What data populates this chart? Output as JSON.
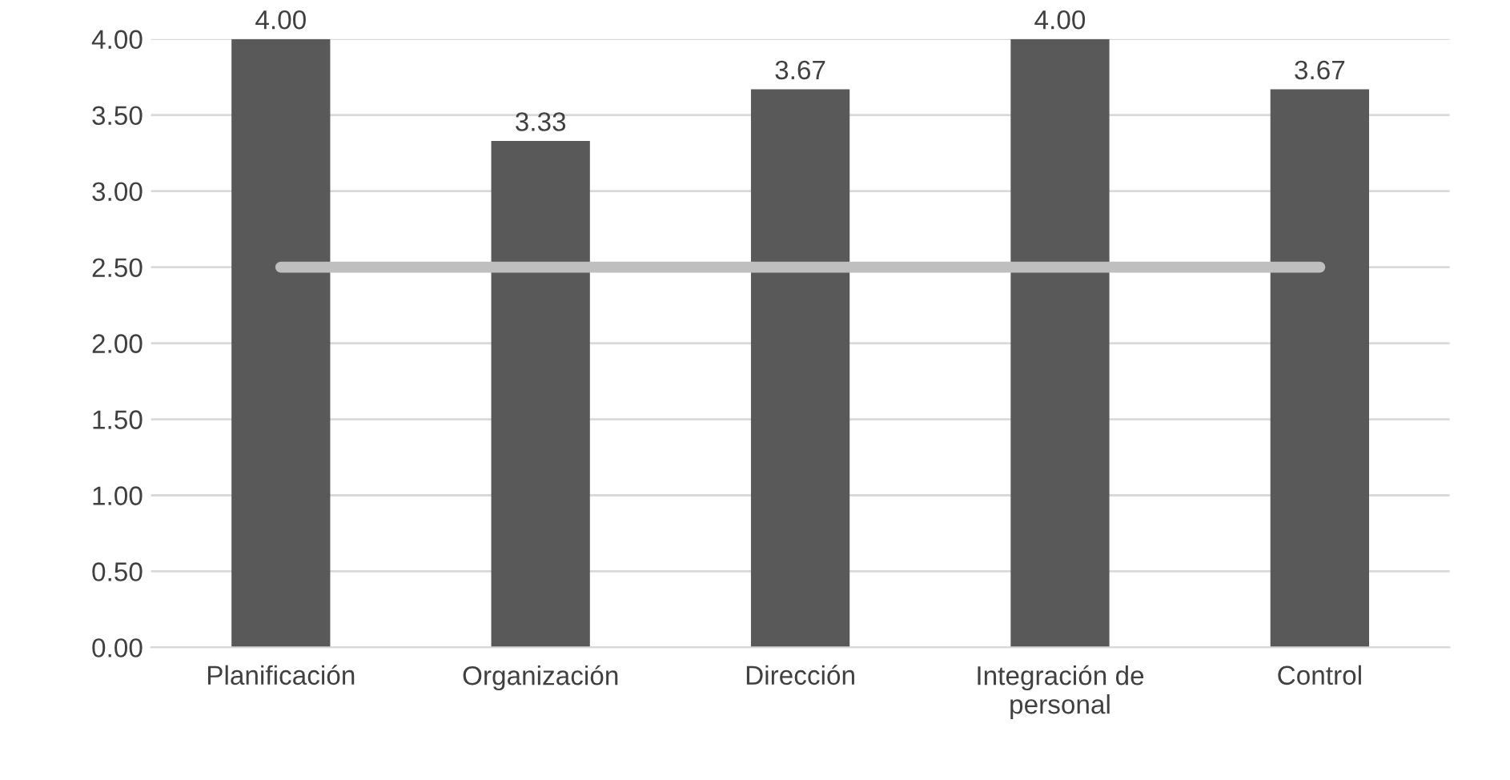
{
  "chart_data": {
    "type": "bar",
    "categories": [
      "Planificación",
      "Organización",
      "Dirección",
      "Integración de\npersonal",
      "Control"
    ],
    "series": [
      {
        "color": "#595959",
        "values": [
          4.0,
          3.33,
          3.67,
          4.0,
          3.67
        ],
        "value_labels": [
          "4.00",
          "3.33",
          "3.67",
          "4.00",
          "3.67"
        ]
      },
      {
        "type": "line",
        "color": "#bfbfbf",
        "values": [
          2.5,
          2.5,
          2.5,
          2.5,
          2.5
        ]
      }
    ],
    "ylim": [
      0,
      4
    ],
    "yticks": [
      {
        "value": 0,
        "label": "0.00"
      },
      {
        "value": 0.5,
        "label": "0.50"
      },
      {
        "value": 1,
        "label": "1.00"
      },
      {
        "value": 1.5,
        "label": "1.50"
      },
      {
        "value": 2,
        "label": "2.00"
      },
      {
        "value": 2.5,
        "label": "2.50"
      },
      {
        "value": 3,
        "label": "3.00"
      },
      {
        "value": 3.5,
        "label": "3.50"
      },
      {
        "value": 4,
        "label": "4.00"
      }
    ],
    "grid": "y",
    "legend": false
  }
}
